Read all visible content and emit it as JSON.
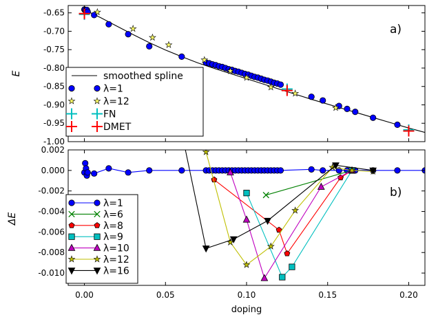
{
  "figure": {
    "xlabel": "doping",
    "xticks": [
      0.0,
      0.05,
      0.1,
      0.15,
      0.2
    ],
    "xtick_labels": [
      "0.00",
      "0.05",
      "0.10",
      "0.15",
      "0.20"
    ]
  },
  "chart_data": [
    {
      "type": "line",
      "panel_label": "a)",
      "ylabel": "E",
      "xlim": [
        -0.01,
        0.21
      ],
      "ylim": [
        -1.0,
        -0.63
      ],
      "yticks": [
        -0.65,
        -0.7,
        -0.75,
        -0.8,
        -0.85,
        -0.9,
        -0.95,
        -1.0
      ],
      "ytick_labels": [
        "-0.65",
        "-0.70",
        "-0.75",
        "-0.80",
        "-0.85",
        "-0.90",
        "-0.95",
        "-1.00"
      ],
      "legend_position": "lower-left",
      "series": [
        {
          "name": "smoothed spline",
          "kind": "line",
          "color": "#000000",
          "x": [
            0.0,
            0.01,
            0.02,
            0.03,
            0.04,
            0.05,
            0.06,
            0.07,
            0.08,
            0.09,
            0.1,
            0.11,
            0.12,
            0.13,
            0.14,
            0.15,
            0.16,
            0.17,
            0.18,
            0.19,
            0.2,
            0.21
          ],
          "y": [
            -0.642,
            -0.663,
            -0.686,
            -0.709,
            -0.731,
            -0.751,
            -0.769,
            -0.786,
            -0.801,
            -0.815,
            -0.829,
            -0.843,
            -0.857,
            -0.871,
            -0.885,
            -0.898,
            -0.911,
            -0.924,
            -0.937,
            -0.95,
            -0.963,
            -0.975
          ]
        },
        {
          "name": "λ=1",
          "kind": "markers",
          "marker": "circle",
          "color": "#0000ff",
          "x": [
            0.0,
            0.0005,
            0.001,
            0.0015,
            0.002,
            0.006,
            0.015,
            0.027,
            0.04,
            0.06,
            0.075,
            0.077,
            0.079,
            0.081,
            0.083,
            0.085,
            0.087,
            0.089,
            0.091,
            0.093,
            0.095,
            0.097,
            0.099,
            0.101,
            0.103,
            0.105,
            0.107,
            0.109,
            0.111,
            0.113,
            0.115,
            0.117,
            0.119,
            0.121,
            0.14,
            0.147,
            0.157,
            0.162,
            0.167,
            0.178,
            0.193
          ],
          "y": [
            -0.641,
            -0.643,
            -0.645,
            -0.642,
            -0.647,
            -0.656,
            -0.681,
            -0.708,
            -0.741,
            -0.769,
            -0.785,
            -0.787,
            -0.79,
            -0.792,
            -0.795,
            -0.797,
            -0.8,
            -0.803,
            -0.805,
            -0.808,
            -0.81,
            -0.813,
            -0.816,
            -0.818,
            -0.821,
            -0.824,
            -0.826,
            -0.829,
            -0.832,
            -0.834,
            -0.837,
            -0.84,
            -0.842,
            -0.845,
            -0.878,
            -0.888,
            -0.903,
            -0.911,
            -0.919,
            -0.935,
            -0.954
          ]
        },
        {
          "name": "λ=12",
          "kind": "markers",
          "marker": "star",
          "color": "#ffff66",
          "x": [
            0.008,
            0.03,
            0.042,
            0.052,
            0.074,
            0.09,
            0.1,
            0.115,
            0.13,
            0.155
          ],
          "y": [
            -0.648,
            -0.693,
            -0.717,
            -0.737,
            -0.778,
            -0.808,
            -0.826,
            -0.852,
            -0.869,
            -0.908
          ]
        },
        {
          "name": "FN",
          "kind": "markers",
          "marker": "plus",
          "color": "#00bfbf",
          "x": [
            0.0,
            0.125,
            0.2
          ],
          "y": [
            -0.654,
            -0.857,
            -0.968
          ]
        },
        {
          "name": "DMET",
          "kind": "markers",
          "marker": "plus",
          "color": "#ff0000",
          "x": [
            0.0,
            0.125,
            0.2
          ],
          "y": [
            -0.652,
            -0.861,
            -0.971
          ]
        }
      ]
    },
    {
      "type": "line",
      "panel_label": "b)",
      "ylabel": "ΔE",
      "xlim": [
        -0.01,
        0.21
      ],
      "ylim": [
        -0.0112,
        0.002
      ],
      "yticks": [
        0.002,
        0.0,
        -0.002,
        -0.004,
        -0.006,
        -0.008,
        -0.01
      ],
      "ytick_labels": [
        "0.002",
        "0.000",
        "-0.002",
        "-0.004",
        "-0.006",
        "-0.008",
        "-0.010"
      ],
      "legend_position": "lower-left",
      "series": [
        {
          "name": "λ=1",
          "marker": "circle",
          "color": "#0000ff",
          "x": [
            0.0,
            0.0005,
            0.001,
            0.0015,
            0.002,
            0.006,
            0.015,
            0.027,
            0.04,
            0.06,
            0.075,
            0.077,
            0.079,
            0.081,
            0.083,
            0.085,
            0.087,
            0.089,
            0.091,
            0.093,
            0.095,
            0.097,
            0.099,
            0.101,
            0.103,
            0.105,
            0.107,
            0.109,
            0.111,
            0.113,
            0.115,
            0.117,
            0.119,
            0.121,
            0.14,
            0.147,
            0.157,
            0.162,
            0.167,
            0.178,
            0.193,
            0.21
          ],
          "y": [
            -0.0002,
            0.0007,
            0.0002,
            -0.0005,
            -0.0002,
            -0.0003,
            0.0002,
            -0.0002,
            0.0,
            0.0,
            0.0,
            0.0,
            0.0,
            0.0,
            0.0,
            0.0,
            0.0,
            0.0,
            0.0,
            0.0,
            0.0,
            0.0,
            0.0,
            0.0,
            0.0,
            0.0,
            0.0,
            0.0,
            0.0,
            0.0,
            0.0,
            0.0,
            0.0,
            0.0,
            0.0001,
            0.0,
            0.0,
            0.0,
            0.0,
            0.0,
            0.0,
            0.0
          ]
        },
        {
          "name": "λ=6",
          "marker": "x",
          "color": "#008000",
          "x": [
            0.112,
            0.165
          ],
          "y": [
            -0.0024,
            0.0
          ]
        },
        {
          "name": "λ=8",
          "marker": "pentagon",
          "color": "#ff0000",
          "x": [
            0.08,
            0.12,
            0.125,
            0.158,
            0.165
          ],
          "y": [
            -0.0009,
            -0.0058,
            -0.0081,
            -0.0007,
            0.0
          ]
        },
        {
          "name": "λ=9",
          "marker": "square",
          "color": "#00bfbf",
          "x": [
            0.1,
            0.122,
            0.128,
            0.165
          ],
          "y": [
            -0.0022,
            -0.0104,
            -0.0094,
            0.0
          ]
        },
        {
          "name": "λ=10",
          "marker": "triangle-up",
          "color": "#bf00bf",
          "x": [
            0.09,
            0.1,
            0.111,
            0.146,
            0.165
          ],
          "y": [
            -0.0002,
            -0.0048,
            -0.0105,
            -0.0016,
            0.0
          ]
        },
        {
          "name": "λ=12",
          "marker": "star",
          "color": "#bfbf00",
          "x": [
            0.075,
            0.09,
            0.1,
            0.115,
            0.13,
            0.153,
            0.165,
            0.178
          ],
          "y": [
            0.0018,
            -0.007,
            -0.0092,
            -0.0074,
            -0.0039,
            0.0003,
            0.0,
            -0.0001
          ]
        },
        {
          "name": "λ=16",
          "marker": "triangle-down",
          "color": "#000000",
          "x": [
            0.055,
            0.075,
            0.092,
            0.113,
            0.155,
            0.178
          ],
          "y": [
            0.0075,
            -0.0076,
            -0.0067,
            -0.0049,
            0.0005,
            0.0
          ]
        }
      ]
    }
  ]
}
